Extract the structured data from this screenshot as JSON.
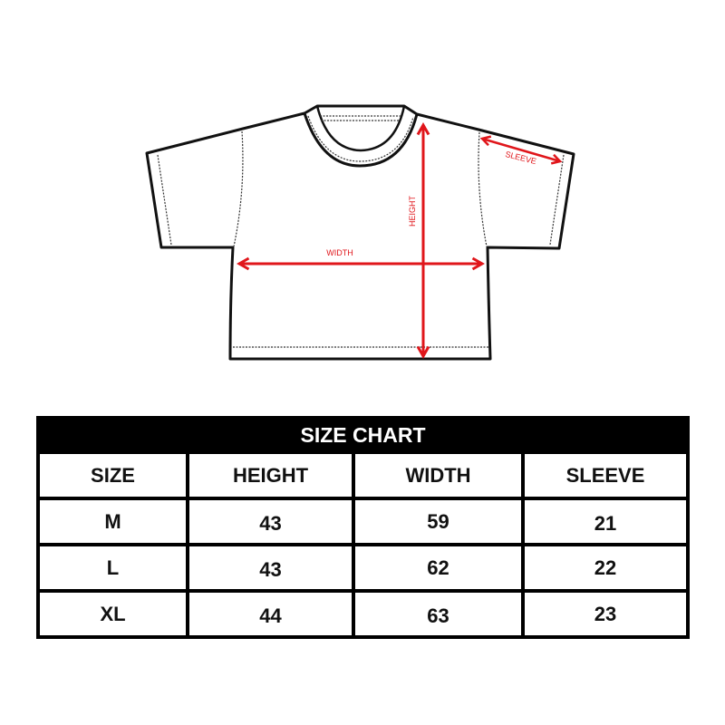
{
  "diagram": {
    "labels": {
      "width": "WIDTH",
      "height": "HEIGHT",
      "sleeve": "SLEEVE"
    },
    "arrow_color": "#e0161b",
    "outline_color": "#111111"
  },
  "size_chart": {
    "title": "SIZE CHART",
    "headers": [
      "SIZE",
      "HEIGHT",
      "WIDTH",
      "SLEEVE"
    ],
    "rows": [
      [
        "M",
        "43",
        "59",
        "21"
      ],
      [
        "L",
        "43",
        "62",
        "22"
      ],
      [
        "XL",
        "44",
        "63",
        "23"
      ]
    ]
  }
}
